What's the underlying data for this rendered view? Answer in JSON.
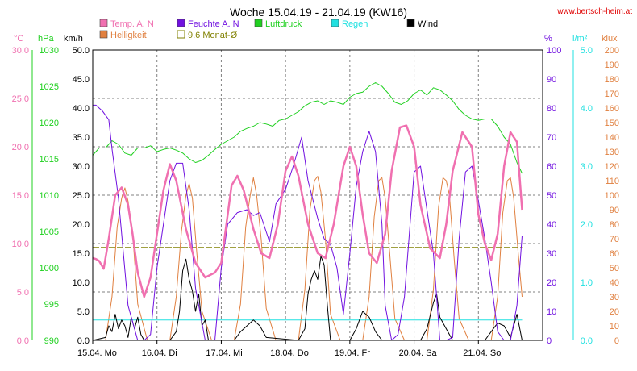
{
  "header": {
    "title": "Woche 15.04.19 - 21.04.19 (KW16)",
    "site": "www.bertsch-heim.at"
  },
  "colors": {
    "temp": "#f070b0",
    "humidity": "#7010e0",
    "pressure": "#20d020",
    "rain": "#20e0e0",
    "wind": "#000000",
    "brightness": "#e08040",
    "avg": "#808000",
    "grid": "#808080"
  },
  "chart_data": {
    "type": "line",
    "title": "Woche 15.04.19 - 21.04.19 (KW16)",
    "x_range": [
      0,
      7
    ],
    "x_ticks": [
      "15.04.  Mo",
      "16.04.  Di",
      "17.04.  Mi",
      "18.04.  Do",
      "19.04.  Fr",
      "20.04.  Sa",
      "21.04.  So"
    ],
    "legend": [
      {
        "name": "Temp. A. N",
        "key": "temp",
        "marker": "filled"
      },
      {
        "name": "Feuchte A. N",
        "key": "humidity",
        "marker": "filled"
      },
      {
        "name": "Luftdruck",
        "key": "pressure",
        "marker": "filled"
      },
      {
        "name": "Regen",
        "key": "rain",
        "marker": "filled"
      },
      {
        "name": "Wind",
        "key": "wind",
        "marker": "filled"
      },
      {
        "name": "Helligkeit",
        "key": "brightness",
        "marker": "filled"
      },
      {
        "name": "9.6 Monat-Ø",
        "key": "avg",
        "marker": "hollow"
      }
    ],
    "axes": {
      "temp": {
        "unit": "°C",
        "range": [
          0,
          30
        ],
        "ticks": [
          "0.0",
          "5.0",
          "10.0",
          "15.0",
          "20.0",
          "25.0",
          "30.0"
        ]
      },
      "pressure": {
        "unit": "hPa",
        "range": [
          990,
          1030
        ],
        "ticks": [
          "990",
          "995",
          "1000",
          "1005",
          "1010",
          "1015",
          "1020",
          "1025",
          "1030"
        ]
      },
      "wind": {
        "unit": "km/h",
        "range": [
          0,
          50
        ],
        "ticks": [
          "0.0",
          "5.0",
          "10.0",
          "15.0",
          "20.0",
          "25.0",
          "30.0",
          "35.0",
          "40.0",
          "45.0",
          "50.0"
        ]
      },
      "humidity": {
        "unit": "%",
        "range": [
          0,
          100
        ],
        "ticks": [
          "0",
          "10",
          "20",
          "30",
          "40",
          "50",
          "60",
          "70",
          "80",
          "90",
          "100"
        ]
      },
      "rain": {
        "unit": "l/m²",
        "range": [
          0,
          5
        ],
        "ticks": [
          "0.0",
          "1.0",
          "2.0",
          "3.0",
          "4.0",
          "5.0"
        ]
      },
      "brightness": {
        "unit": "klux",
        "range": [
          0,
          200
        ],
        "ticks": [
          "0",
          "10",
          "20",
          "30",
          "40",
          "50",
          "60",
          "70",
          "80",
          "90",
          "100",
          "110",
          "120",
          "130",
          "140",
          "150",
          "160",
          "170",
          "180",
          "190",
          "200"
        ]
      }
    },
    "series": [
      {
        "name": "Temp. A. N",
        "key": "temp",
        "axis": "temp",
        "x": [
          0,
          0.05,
          0.1,
          0.17,
          0.25,
          0.35,
          0.45,
          0.55,
          0.62,
          0.7,
          0.8,
          0.9,
          1.0,
          1.1,
          1.2,
          1.3,
          1.45,
          1.6,
          1.75,
          1.9,
          2.0,
          2.08,
          2.16,
          2.25,
          2.35,
          2.5,
          2.62,
          2.75,
          2.88,
          3.0,
          3.1,
          3.2,
          3.35,
          3.5,
          3.62,
          3.75,
          3.9,
          4.0,
          4.1,
          4.2,
          4.3,
          4.42,
          4.55,
          4.65,
          4.78,
          4.88,
          5.0,
          5.1,
          5.25,
          5.4,
          5.5,
          5.6,
          5.75,
          5.9,
          6.0,
          6.1,
          6.2,
          6.3,
          6.4,
          6.5,
          6.6,
          6.68
        ],
        "values": [
          8.5,
          8.4,
          8.2,
          7.4,
          10.5,
          15.0,
          15.8,
          14.0,
          11.0,
          7.0,
          4.5,
          6.5,
          11.0,
          15.5,
          18.2,
          16.5,
          11.5,
          8.0,
          6.5,
          7.0,
          8.0,
          12.0,
          16.0,
          17.0,
          15.5,
          11.5,
          9.0,
          8.5,
          12.0,
          17.5,
          19.0,
          17.0,
          12.0,
          9.0,
          8.5,
          12.0,
          18.0,
          20.0,
          18.0,
          13.0,
          9.0,
          8.0,
          11.0,
          17.5,
          22.0,
          22.2,
          20.0,
          14.0,
          9.5,
          8.5,
          12.0,
          17.5,
          21.5,
          20.0,
          13.0,
          10.0,
          8.3,
          11.0,
          18.0,
          21.5,
          20.5,
          13.5
        ]
      },
      {
        "name": "Feuchte A. N",
        "key": "humidity",
        "axis": "humidity",
        "x": [
          0,
          0.05,
          0.15,
          0.25,
          0.3,
          0.4,
          0.55,
          0.7,
          0.8,
          0.9,
          1.0,
          1.1,
          1.2,
          1.3,
          1.4,
          1.5,
          1.6,
          1.75,
          1.9,
          2.0,
          2.1,
          2.25,
          2.4,
          2.5,
          2.6,
          2.75,
          2.85,
          3.0,
          3.12,
          3.25,
          3.35,
          3.5,
          3.6,
          3.7,
          3.8,
          3.9,
          4.0,
          4.1,
          4.2,
          4.3,
          4.4,
          4.5,
          4.55,
          4.65,
          4.75,
          4.85,
          5.0,
          5.1,
          5.2,
          5.3,
          5.4,
          5.5,
          5.6,
          5.7,
          5.8,
          5.9,
          6.0,
          6.1,
          6.2,
          6.3,
          6.4,
          6.5,
          6.6,
          6.68
        ],
        "values": [
          81,
          81,
          79,
          76,
          66,
          49,
          12,
          0,
          0,
          2,
          25,
          40,
          55,
          61,
          61,
          45,
          18,
          0,
          0,
          25,
          40,
          44,
          45,
          43,
          44,
          34,
          47,
          52,
          60,
          70,
          55,
          42,
          35,
          33,
          25,
          9,
          30,
          53,
          65,
          72,
          65,
          40,
          12,
          0,
          2,
          15,
          58,
          60,
          45,
          30,
          0,
          0,
          1,
          35,
          58,
          60,
          48,
          35,
          20,
          3,
          0,
          0,
          12,
          36
        ]
      },
      {
        "name": "Luftdruck",
        "key": "pressure",
        "axis": "pressure",
        "x": [
          0,
          0.1,
          0.2,
          0.3,
          0.4,
          0.5,
          0.6,
          0.7,
          0.8,
          0.9,
          1.0,
          1.1,
          1.2,
          1.3,
          1.4,
          1.5,
          1.6,
          1.7,
          1.8,
          1.9,
          2.0,
          2.1,
          2.2,
          2.3,
          2.4,
          2.5,
          2.6,
          2.7,
          2.8,
          2.9,
          3.0,
          3.1,
          3.2,
          3.3,
          3.4,
          3.5,
          3.6,
          3.7,
          3.8,
          3.9,
          4.0,
          4.1,
          4.2,
          4.3,
          4.4,
          4.5,
          4.6,
          4.7,
          4.8,
          4.9,
          5.0,
          5.1,
          5.2,
          5.3,
          5.4,
          5.5,
          5.6,
          5.7,
          5.8,
          5.9,
          6.0,
          6.1,
          6.2,
          6.3,
          6.4,
          6.5,
          6.6,
          6.68
        ],
        "values": [
          1015.5,
          1016.5,
          1016.5,
          1017.5,
          1017.0,
          1015.8,
          1015.5,
          1016.5,
          1016.5,
          1016.8,
          1016.0,
          1016.3,
          1016.5,
          1016.2,
          1015.8,
          1015.0,
          1014.5,
          1014.8,
          1015.5,
          1016.3,
          1017.0,
          1017.5,
          1018.0,
          1018.8,
          1019.2,
          1019.5,
          1020.0,
          1019.8,
          1019.5,
          1020.3,
          1020.5,
          1021.0,
          1021.5,
          1022.3,
          1022.8,
          1023.0,
          1022.5,
          1023.0,
          1022.8,
          1022.5,
          1023.5,
          1024.0,
          1024.2,
          1025.0,
          1025.5,
          1025.0,
          1024.0,
          1022.8,
          1022.5,
          1023.0,
          1024.0,
          1024.5,
          1023.8,
          1024.8,
          1024.5,
          1023.8,
          1023.0,
          1021.8,
          1021.0,
          1020.5,
          1020.3,
          1020.5,
          1020.5,
          1019.5,
          1018.0,
          1017.0,
          1014.5,
          1013.0
        ]
      },
      {
        "name": "Wind",
        "key": "wind",
        "axis": "wind",
        "x": [
          0,
          0.2,
          0.25,
          0.3,
          0.35,
          0.4,
          0.45,
          0.5,
          0.55,
          0.6,
          0.65,
          0.7,
          0.75,
          0.8,
          1.2,
          1.3,
          1.35,
          1.4,
          1.45,
          1.5,
          1.55,
          1.6,
          1.65,
          1.7,
          1.75,
          1.8,
          2.2,
          2.3,
          2.4,
          2.5,
          2.6,
          2.7,
          3.2,
          3.3,
          3.35,
          3.4,
          3.45,
          3.5,
          3.55,
          3.6,
          3.65,
          3.7,
          4.0,
          4.1,
          4.2,
          4.3,
          4.4,
          4.5,
          4.8,
          5.1,
          5.2,
          5.3,
          5.35,
          5.4,
          5.5,
          5.6,
          5.9,
          6.1,
          6.2,
          6.3,
          6.4,
          6.5,
          6.6,
          6.68
        ],
        "values": [
          0,
          0.5,
          2.5,
          1.5,
          4.5,
          2.0,
          3.5,
          2.5,
          0.5,
          4.0,
          2.0,
          4.0,
          1.0,
          0,
          0,
          1.5,
          5.0,
          12.0,
          14.0,
          10.5,
          8.5,
          5.0,
          8.0,
          2.5,
          3.5,
          0,
          0,
          1.5,
          2.5,
          3.5,
          2.5,
          0.5,
          0,
          2.0,
          8.0,
          10.5,
          12.0,
          10.5,
          14.5,
          13.0,
          6.0,
          0,
          0,
          2.0,
          5.0,
          4.0,
          1.5,
          0,
          0,
          0,
          2.0,
          6.5,
          8.0,
          4.0,
          2.0,
          0,
          0,
          0,
          1.5,
          3.0,
          2.5,
          0.5,
          4.5,
          0
        ]
      },
      {
        "name": "Helligkeit",
        "key": "brightness",
        "axis": "brightness",
        "x": [
          0,
          0.2,
          0.3,
          0.38,
          0.45,
          0.5,
          0.55,
          0.62,
          0.7,
          0.85,
          1.2,
          1.3,
          1.38,
          1.45,
          1.5,
          1.55,
          1.62,
          1.7,
          1.85,
          2.2,
          2.3,
          2.38,
          2.45,
          2.5,
          2.55,
          2.62,
          2.7,
          2.85,
          3.2,
          3.3,
          3.38,
          3.45,
          3.5,
          3.55,
          3.62,
          3.7,
          3.85,
          4.2,
          4.3,
          4.38,
          4.45,
          4.5,
          4.55,
          4.62,
          4.7,
          4.85,
          5.2,
          5.3,
          5.38,
          5.45,
          5.5,
          5.55,
          5.62,
          5.7,
          5.85,
          6.2,
          6.3,
          6.38,
          6.45,
          6.5,
          6.55,
          6.62,
          6.68
        ],
        "values": [
          0,
          0,
          30,
          78,
          98,
          105,
          96,
          75,
          25,
          0,
          0,
          30,
          75,
          100,
          108,
          98,
          60,
          20,
          0,
          0,
          25,
          78,
          100,
          112,
          100,
          70,
          22,
          0,
          0,
          35,
          90,
          110,
          113,
          102,
          70,
          18,
          0,
          0,
          30,
          85,
          110,
          112,
          98,
          60,
          15,
          0,
          0,
          35,
          92,
          112,
          110,
          100,
          58,
          15,
          0,
          0,
          30,
          88,
          110,
          112,
          98,
          60,
          30
        ]
      },
      {
        "name": "9.6 Monat-Ø",
        "key": "avg",
        "axis": "temp",
        "x": [
          0,
          6.68
        ],
        "values": [
          9.6,
          9.6
        ]
      },
      {
        "name": "Regen",
        "key": "rain",
        "axis": "rain",
        "x": [
          0,
          6.68
        ],
        "values": [
          0.35,
          0.35
        ]
      }
    ]
  }
}
